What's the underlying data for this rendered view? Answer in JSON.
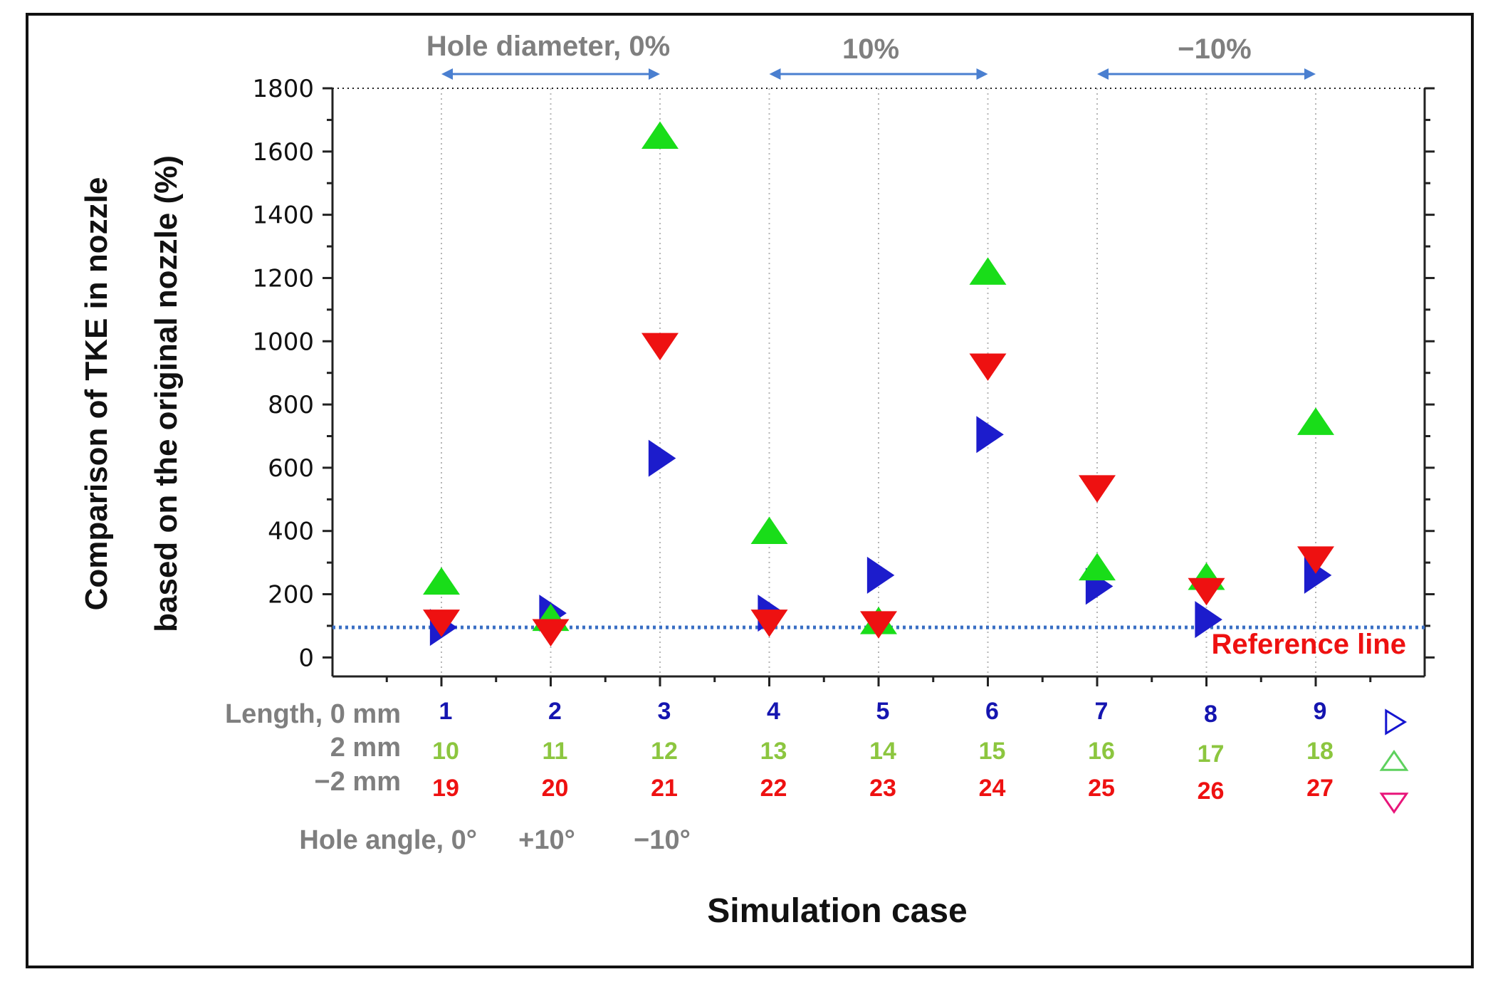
{
  "chart_data": {
    "type": "scatter",
    "xlabel": "Simulation case",
    "ylabel_line1": "Comparison of TKE in nozzle",
    "ylabel_line2": "based on the original nozzle (%)",
    "ylim": [
      -60,
      1800
    ],
    "y_ticks": [
      0,
      200,
      400,
      600,
      800,
      1000,
      1200,
      1400,
      1600,
      1800
    ],
    "x_positions": [
      1,
      2,
      3,
      4,
      5,
      6,
      7,
      8,
      9
    ],
    "grid": "vertical dotted lines at each case",
    "reference_line": {
      "value": 95,
      "label": "Reference line",
      "color": "#3a6fc4"
    },
    "series": [
      {
        "symbol": "right-triangle",
        "color": "#1c1ccc",
        "values": [
          95,
          140,
          630,
          140,
          260,
          705,
          225,
          120,
          260
        ]
      },
      {
        "symbol": "up-triangle",
        "color": "#19dd19",
        "values": [
          235,
          120,
          1645,
          395,
          110,
          1215,
          280,
          250,
          740
        ]
      },
      {
        "symbol": "down-triangle",
        "color": "#ee1111",
        "values": [
          115,
          85,
          990,
          115,
          110,
          925,
          540,
          215,
          315
        ]
      }
    ],
    "top_groups": [
      {
        "label": "Hole diameter, 0%",
        "from": 1,
        "to": 3
      },
      {
        "label": "10%",
        "from": 4,
        "to": 6
      },
      {
        "label": "−10%",
        "from": 7,
        "to": 9
      }
    ],
    "case_rows": [
      {
        "label": "Length, 0 mm",
        "color": "#1515b0",
        "cases": [
          "1",
          "2",
          "3",
          "4",
          "5",
          "6",
          "7",
          "8",
          "9"
        ]
      },
      {
        "label": "2 mm",
        "color": "#8cc63f",
        "cases": [
          "10",
          "11",
          "12",
          "13",
          "14",
          "15",
          "16",
          "17",
          "18"
        ]
      },
      {
        "label": "−2 mm",
        "color": "#ee1111",
        "cases": [
          "19",
          "20",
          "21",
          "22",
          "23",
          "24",
          "25",
          "26",
          "27"
        ]
      }
    ],
    "legend_symbols": [
      {
        "icon": "outline-right-triangle",
        "color": "#1515d0"
      },
      {
        "icon": "outline-up-triangle",
        "color": "#5ed15e"
      },
      {
        "icon": "outline-down-triangle",
        "color": "#e8157a"
      }
    ],
    "hole_angle": {
      "label": "Hole angle, 0°",
      "values": [
        "+10°",
        "−10°"
      ]
    }
  }
}
